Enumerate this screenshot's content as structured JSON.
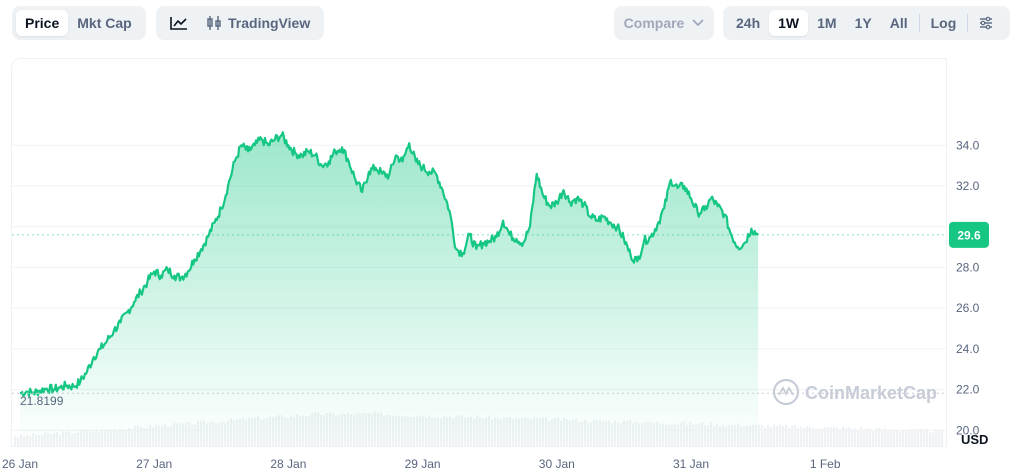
{
  "toolbar": {
    "price_tab": "Price",
    "mktcap_tab": "Mkt Cap",
    "tradingview_label": "TradingView",
    "compare_label": "Compare",
    "ranges": [
      "24h",
      "1W",
      "1M",
      "1Y",
      "All"
    ],
    "active_range": "1W",
    "log_label": "Log"
  },
  "colors": {
    "line": "#16c784",
    "area_top": "#16c784",
    "volume": "#eff2f5",
    "grid": "#eff2f5",
    "badge": "#16c784"
  },
  "watermark": "CoinMarketCap",
  "chart_data": {
    "type": "area",
    "xlabel": "",
    "ylabel": "",
    "x_ticks": [
      "26 Jan",
      "27 Jan",
      "28 Jan",
      "29 Jan",
      "30 Jan",
      "31 Jan",
      "1 Feb"
    ],
    "y_ticks": [
      "20.0",
      "22.0",
      "24.0",
      "26.0",
      "28.0",
      "30.0",
      "32.0",
      "34.0"
    ],
    "y_tick_values": [
      20,
      22,
      24,
      26,
      28,
      30,
      32,
      34
    ],
    "ylim": [
      17.8,
      35.6
    ],
    "currency_label": "USD",
    "open_price_label": "21.8199",
    "open_price": 21.8199,
    "current_price_label": "29.6",
    "current_price": 29.6,
    "grid": true,
    "series": [
      {
        "values": [
          [
            0.0,
            21.82
          ],
          [
            0.05,
            21.9
          ],
          [
            0.1,
            21.85
          ],
          [
            0.15,
            21.95
          ],
          [
            0.2,
            22.05
          ],
          [
            0.25,
            22.0
          ],
          [
            0.3,
            22.1
          ],
          [
            0.35,
            22.2
          ],
          [
            0.4,
            22.15
          ],
          [
            0.45,
            22.4
          ],
          [
            0.5,
            22.9
          ],
          [
            0.55,
            23.6
          ],
          [
            0.6,
            24.0
          ],
          [
            0.65,
            24.4
          ],
          [
            0.7,
            24.9
          ],
          [
            0.75,
            25.3
          ],
          [
            0.8,
            25.8
          ],
          [
            0.85,
            26.3
          ],
          [
            0.9,
            26.8
          ],
          [
            0.95,
            27.3
          ],
          [
            1.0,
            27.8
          ],
          [
            1.05,
            27.6
          ],
          [
            1.1,
            27.9
          ],
          [
            1.15,
            27.6
          ],
          [
            1.2,
            27.5
          ],
          [
            1.25,
            27.8
          ],
          [
            1.3,
            28.4
          ],
          [
            1.35,
            28.9
          ],
          [
            1.4,
            29.5
          ],
          [
            1.45,
            30.2
          ],
          [
            1.5,
            30.9
          ],
          [
            1.55,
            32.0
          ],
          [
            1.6,
            33.2
          ],
          [
            1.65,
            34.0
          ],
          [
            1.7,
            33.7
          ],
          [
            1.75,
            34.0
          ],
          [
            1.8,
            34.3
          ],
          [
            1.85,
            34.0
          ],
          [
            1.9,
            34.3
          ],
          [
            1.95,
            34.5
          ],
          [
            2.0,
            34.0
          ],
          [
            2.05,
            33.6
          ],
          [
            2.1,
            33.5
          ],
          [
            2.15,
            33.7
          ],
          [
            2.2,
            33.5
          ],
          [
            2.25,
            33.0
          ],
          [
            2.3,
            33.2
          ],
          [
            2.35,
            33.7
          ],
          [
            2.4,
            33.9
          ],
          [
            2.45,
            33.2
          ],
          [
            2.5,
            32.3
          ],
          [
            2.55,
            31.7
          ],
          [
            2.6,
            32.7
          ],
          [
            2.65,
            32.9
          ],
          [
            2.7,
            32.6
          ],
          [
            2.75,
            32.5
          ],
          [
            2.8,
            33.5
          ],
          [
            2.85,
            33.2
          ],
          [
            2.9,
            34.1
          ],
          [
            2.95,
            33.2
          ],
          [
            3.0,
            32.9
          ],
          [
            3.05,
            32.7
          ],
          [
            3.1,
            32.6
          ],
          [
            3.15,
            31.8
          ],
          [
            3.2,
            30.8
          ],
          [
            3.25,
            28.9
          ],
          [
            3.3,
            28.7
          ],
          [
            3.35,
            29.6
          ],
          [
            3.4,
            28.9
          ],
          [
            3.45,
            29.2
          ],
          [
            3.5,
            29.3
          ],
          [
            3.55,
            29.5
          ],
          [
            3.6,
            30.3
          ],
          [
            3.65,
            29.6
          ],
          [
            3.7,
            29.4
          ],
          [
            3.75,
            29.2
          ],
          [
            3.8,
            30.0
          ],
          [
            3.85,
            32.6
          ],
          [
            3.9,
            31.5
          ],
          [
            3.95,
            31.0
          ],
          [
            4.0,
            31.2
          ],
          [
            4.05,
            31.8
          ],
          [
            4.1,
            31.2
          ],
          [
            4.15,
            31.4
          ],
          [
            4.2,
            31.1
          ],
          [
            4.25,
            30.5
          ],
          [
            4.3,
            30.3
          ],
          [
            4.35,
            30.5
          ],
          [
            4.4,
            30.2
          ],
          [
            4.45,
            30.0
          ],
          [
            4.5,
            29.4
          ],
          [
            4.55,
            28.6
          ],
          [
            4.6,
            28.3
          ],
          [
            4.65,
            29.3
          ],
          [
            4.7,
            29.5
          ],
          [
            4.75,
            30.1
          ],
          [
            4.8,
            30.9
          ],
          [
            4.85,
            32.3
          ],
          [
            4.9,
            31.9
          ],
          [
            4.95,
            32.0
          ],
          [
            5.0,
            31.4
          ],
          [
            5.05,
            30.7
          ],
          [
            5.1,
            30.8
          ],
          [
            5.15,
            31.4
          ],
          [
            5.2,
            31.0
          ],
          [
            5.25,
            30.6
          ],
          [
            5.3,
            29.6
          ],
          [
            5.35,
            29.0
          ],
          [
            5.4,
            29.2
          ],
          [
            5.45,
            29.9
          ],
          [
            5.5,
            29.6
          ]
        ]
      }
    ]
  }
}
